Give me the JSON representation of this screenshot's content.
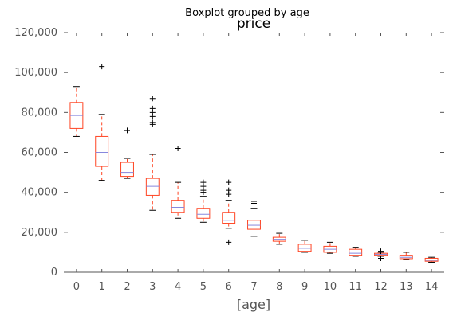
{
  "chart_data": {
    "type": "box",
    "suptitle": "Boxplot grouped by age",
    "title": "price",
    "xlabel": "[age]",
    "ylabel": "",
    "ylim": [
      0,
      120000
    ],
    "yticks": [
      0,
      20000,
      40000,
      60000,
      80000,
      100000,
      120000
    ],
    "ytick_labels": [
      "0",
      "20,000",
      "40,000",
      "60,000",
      "80,000",
      "100,000",
      "120,000"
    ],
    "categories": [
      "0",
      "1",
      "2",
      "3",
      "4",
      "5",
      "6",
      "7",
      "8",
      "9",
      "10",
      "11",
      "12",
      "13",
      "14"
    ],
    "grid": false,
    "colors": {
      "box": "#ff4422",
      "median": "#8888dd",
      "whisker_cap": "#000000",
      "outlier": "#000000",
      "axis": "#555555"
    },
    "boxes": [
      {
        "category": "0",
        "whislo": 68000,
        "q1": 72000,
        "med": 78500,
        "q3": 85000,
        "whishi": 93000,
        "fliers": []
      },
      {
        "category": "1",
        "whislo": 46000,
        "q1": 53000,
        "med": 60000,
        "q3": 68000,
        "whishi": 79000,
        "fliers": [
          103000
        ]
      },
      {
        "category": "2",
        "whislo": 47000,
        "q1": 48000,
        "med": 50000,
        "q3": 55000,
        "whishi": 57000,
        "fliers": [
          71000
        ]
      },
      {
        "category": "3",
        "whislo": 31000,
        "q1": 38500,
        "med": 43000,
        "q3": 47000,
        "whishi": 59000,
        "fliers": [
          74000,
          75000,
          78000,
          80000,
          82000,
          87000
        ]
      },
      {
        "category": "4",
        "whislo": 27000,
        "q1": 30000,
        "med": 32500,
        "q3": 36000,
        "whishi": 45000,
        "fliers": [
          62000
        ]
      },
      {
        "category": "5",
        "whislo": 25000,
        "q1": 27000,
        "med": 29000,
        "q3": 32000,
        "whishi": 38000,
        "fliers": [
          40000,
          41000,
          43000,
          45000
        ]
      },
      {
        "category": "6",
        "whislo": 22000,
        "q1": 24500,
        "med": 26000,
        "q3": 30000,
        "whishi": 36000,
        "fliers": [
          15000,
          39000,
          41000,
          45000
        ]
      },
      {
        "category": "7",
        "whislo": 18000,
        "q1": 21500,
        "med": 23500,
        "q3": 26000,
        "whishi": 32000,
        "fliers": [
          34500,
          35500
        ]
      },
      {
        "category": "8",
        "whislo": 14000,
        "q1": 15500,
        "med": 16500,
        "q3": 17500,
        "whishi": 19500,
        "fliers": []
      },
      {
        "category": "9",
        "whislo": 10000,
        "q1": 10500,
        "med": 12000,
        "q3": 14000,
        "whishi": 16000,
        "fliers": []
      },
      {
        "category": "10",
        "whislo": 9500,
        "q1": 10000,
        "med": 11500,
        "q3": 13000,
        "whishi": 15000,
        "fliers": []
      },
      {
        "category": "11",
        "whislo": 8000,
        "q1": 8500,
        "med": 9500,
        "q3": 11500,
        "whishi": 12500,
        "fliers": []
      },
      {
        "category": "12",
        "whislo": 8000,
        "q1": 8500,
        "med": 9000,
        "q3": 9500,
        "whishi": 10000,
        "fliers": [
          7000,
          10500
        ]
      },
      {
        "category": "13",
        "whislo": 6500,
        "q1": 6800,
        "med": 7500,
        "q3": 8500,
        "whishi": 10000,
        "fliers": []
      },
      {
        "category": "14",
        "whislo": 5000,
        "q1": 5500,
        "med": 6000,
        "q3": 7000,
        "whishi": 7500,
        "fliers": []
      }
    ]
  }
}
